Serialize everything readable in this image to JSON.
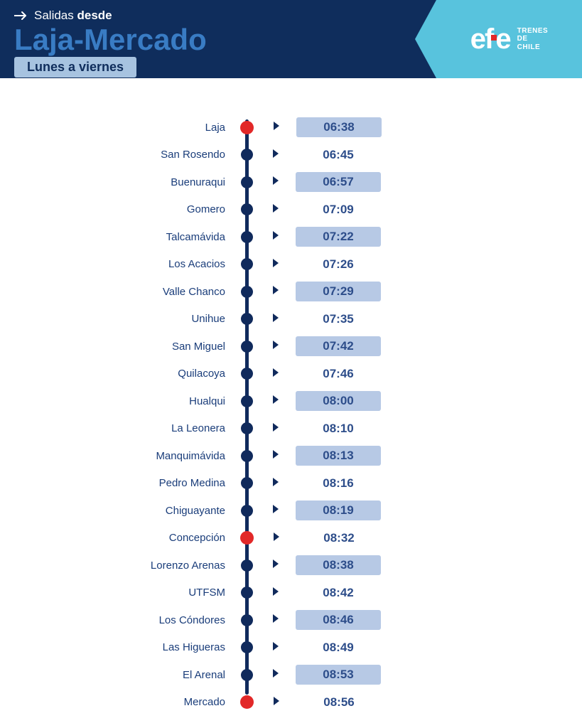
{
  "header": {
    "salidas_prefix": "Salidas",
    "desde": "desde",
    "route": "Laja-Mercado",
    "days": "Lunes a viernes",
    "brand": "efe",
    "brand_sub1": "TRENES",
    "brand_sub2": "DE",
    "brand_sub3": "CHILE"
  },
  "colors": {
    "header_bg": "#0f2d5c",
    "brand_box": "#58c3dd",
    "title": "#397cc4",
    "badge_bg": "#a7c3e0",
    "line": "#102a5c",
    "node_normal": "#102a5c",
    "node_terminal": "#e22828",
    "text": "#1a3d7a",
    "time_alt_bg": "#b7c9e5",
    "time_text": "#2d4d8a"
  },
  "layout": {
    "row_height": 38.5,
    "time_box_width": 120,
    "name_width": 150
  },
  "stops": [
    {
      "name": "Laja",
      "time": "06:38",
      "terminal": true
    },
    {
      "name": "San Rosendo",
      "time": "06:45",
      "terminal": false
    },
    {
      "name": "Buenuraqui",
      "time": "06:57",
      "terminal": false
    },
    {
      "name": "Gomero",
      "time": "07:09",
      "terminal": false
    },
    {
      "name": "Talcamávida",
      "time": "07:22",
      "terminal": false
    },
    {
      "name": "Los Acacios",
      "time": "07:26",
      "terminal": false
    },
    {
      "name": "Valle Chanco",
      "time": "07:29",
      "terminal": false
    },
    {
      "name": "Unihue",
      "time": "07:35",
      "terminal": false
    },
    {
      "name": "San Miguel",
      "time": "07:42",
      "terminal": false
    },
    {
      "name": "Quilacoya",
      "time": "07:46",
      "terminal": false
    },
    {
      "name": "Hualqui",
      "time": "08:00",
      "terminal": false
    },
    {
      "name": "La Leonera",
      "time": "08:10",
      "terminal": false
    },
    {
      "name": "Manquimávida",
      "time": "08:13",
      "terminal": false
    },
    {
      "name": "Pedro Medina",
      "time": "08:16",
      "terminal": false
    },
    {
      "name": "Chiguayante",
      "time": "08:19",
      "terminal": false
    },
    {
      "name": "Concepción",
      "time": "08:32",
      "terminal": true
    },
    {
      "name": "Lorenzo Arenas",
      "time": "08:38",
      "terminal": false
    },
    {
      "name": "UTFSM",
      "time": "08:42",
      "terminal": false
    },
    {
      "name": "Los Cóndores",
      "time": "08:46",
      "terminal": false
    },
    {
      "name": "Las Higueras",
      "time": "08:49",
      "terminal": false
    },
    {
      "name": "El Arenal",
      "time": "08:53",
      "terminal": false
    },
    {
      "name": "Mercado",
      "time": "08:56",
      "terminal": true
    }
  ]
}
